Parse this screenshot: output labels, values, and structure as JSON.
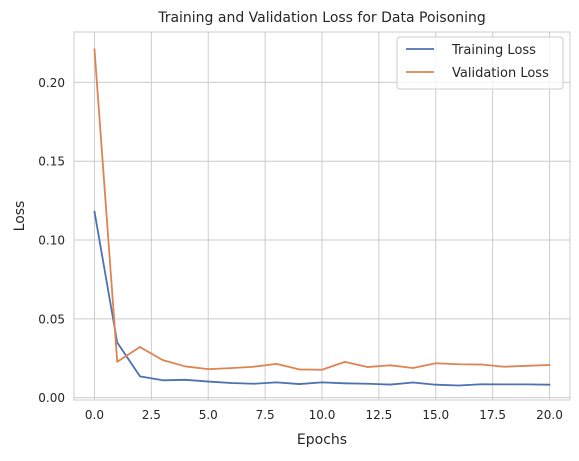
{
  "chart_data": {
    "type": "line",
    "title": "Training and Validation Loss for Data Poisoning",
    "xlabel": "Epochs",
    "ylabel": "Loss",
    "xlim": [
      -0.9,
      20.9
    ],
    "ylim": [
      -0.0015,
      0.232
    ],
    "xticks": [
      0,
      2.5,
      5,
      7.5,
      10,
      12.5,
      15,
      17.5,
      20
    ],
    "xtick_labels": [
      "0.0",
      "2.5",
      "5.0",
      "7.5",
      "10.0",
      "12.5",
      "15.0",
      "17.5",
      "20.0"
    ],
    "yticks": [
      0,
      0.05,
      0.1,
      0.15,
      0.2
    ],
    "ytick_labels": [
      "0.00",
      "0.05",
      "0.10",
      "0.15",
      "0.20"
    ],
    "grid": true,
    "legend_position": "top-right",
    "x": [
      0,
      1,
      2,
      3,
      4,
      5,
      6,
      7,
      8,
      9,
      10,
      11,
      12,
      13,
      14,
      15,
      16,
      17,
      18,
      19,
      20
    ],
    "series": [
      {
        "name": "Training Loss",
        "color": "#4c72b0",
        "values": [
          0.118,
          0.035,
          0.0135,
          0.011,
          0.0113,
          0.0102,
          0.0093,
          0.0088,
          0.0097,
          0.0086,
          0.0097,
          0.0091,
          0.0088,
          0.0083,
          0.0096,
          0.0082,
          0.0077,
          0.0085,
          0.0084,
          0.0084,
          0.0082
        ]
      },
      {
        "name": "Validation Loss",
        "color": "#dd8452",
        "values": [
          0.221,
          0.0228,
          0.0321,
          0.0238,
          0.0198,
          0.0181,
          0.0187,
          0.0196,
          0.0214,
          0.0179,
          0.0177,
          0.0227,
          0.0194,
          0.0205,
          0.0188,
          0.0218,
          0.0212,
          0.021,
          0.0196,
          0.0202,
          0.0207
        ]
      }
    ]
  }
}
